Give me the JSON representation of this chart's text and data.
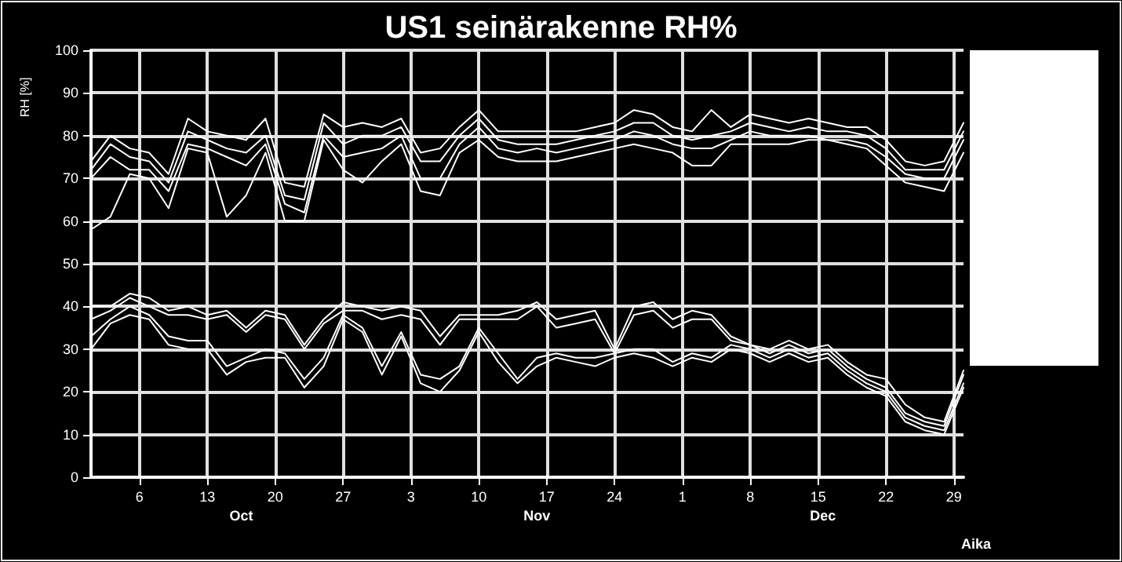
{
  "chart_data": {
    "type": "line",
    "title": "US1 seinärakenne RH%",
    "xlabel": "Aika",
    "ylabel": "RH [%]",
    "x": [
      "--10-01",
      "--10-03",
      "--10-05",
      "--10-07",
      "--10-09",
      "--10-11",
      "--10-13",
      "--10-15",
      "--10-17",
      "--10-19",
      "--10-21",
      "--10-23",
      "--10-25",
      "--10-27",
      "--10-29",
      "--10-31",
      "--11-02",
      "--11-04",
      "--11-06",
      "--11-08",
      "--11-10",
      "--11-12",
      "--11-14",
      "--11-16",
      "--11-18",
      "--11-20",
      "--11-22",
      "--11-24",
      "--11-26",
      "--11-28",
      "--11-30",
      "--12-02",
      "--12-04",
      "--12-06",
      "--12-08",
      "--12-10",
      "--12-12",
      "--12-14",
      "--12-16",
      "--12-18",
      "--12-20",
      "--12-22",
      "--12-24",
      "--12-26",
      "--12-28",
      "--12-30"
    ],
    "series": [
      {
        "color": "#ffffff",
        "values": [
          74,
          80,
          77,
          76,
          71,
          84,
          81,
          80,
          79,
          84,
          69,
          68,
          85,
          82,
          83,
          82,
          84,
          76,
          77,
          82,
          86,
          81,
          81,
          81,
          81,
          81,
          82,
          83,
          86,
          85,
          82,
          81,
          86,
          82,
          85,
          84,
          83,
          84,
          83,
          82,
          82,
          79,
          74,
          73,
          74,
          83
        ]
      },
      {
        "color": "#ffffff",
        "values": [
          72,
          78,
          75,
          74,
          69,
          81,
          79,
          77,
          76,
          80,
          66,
          65,
          83,
          78,
          80,
          80,
          82,
          74,
          74,
          80,
          84,
          79,
          78,
          78,
          78,
          79,
          80,
          81,
          83,
          83,
          80,
          79,
          80,
          81,
          83,
          82,
          81,
          82,
          81,
          81,
          80,
          77,
          72,
          72,
          72,
          81
        ]
      },
      {
        "color": "#ffffff",
        "values": [
          70,
          75,
          72,
          72,
          67,
          78,
          77,
          75,
          73,
          78,
          64,
          62,
          80,
          75,
          76,
          77,
          80,
          70,
          70,
          78,
          82,
          77,
          76,
          77,
          76,
          77,
          78,
          79,
          81,
          80,
          78,
          77,
          77,
          79,
          81,
          80,
          80,
          80,
          79,
          79,
          78,
          75,
          71,
          70,
          70,
          79
        ]
      },
      {
        "color": "#ffffff",
        "values": [
          58,
          61,
          71,
          70,
          63,
          77,
          76,
          61,
          66,
          76,
          60,
          60,
          79,
          72,
          69,
          74,
          78,
          67,
          66,
          76,
          79,
          75,
          74,
          74,
          74,
          75,
          76,
          77,
          78,
          77,
          76,
          73,
          73,
          78,
          78,
          78,
          78,
          79,
          79,
          78,
          77,
          73,
          69,
          68,
          67,
          76
        ]
      },
      {
        "color": "#ffffff",
        "values": [
          40,
          40,
          43,
          42,
          39,
          40,
          38,
          39,
          35,
          39,
          38,
          31,
          37,
          41,
          40,
          39,
          40,
          39,
          33,
          38,
          38,
          38,
          39,
          41,
          37,
          38,
          39,
          30,
          40,
          41,
          37,
          39,
          38,
          33,
          31,
          30,
          32,
          30,
          31,
          27,
          24,
          23,
          17,
          14,
          13,
          25
        ]
      },
      {
        "color": "#ffffff",
        "values": [
          37,
          39,
          42,
          40,
          38,
          38,
          37,
          38,
          34,
          38,
          37,
          30,
          36,
          39,
          39,
          37,
          38,
          37,
          31,
          37,
          37,
          37,
          37,
          40,
          35,
          36,
          37,
          29,
          38,
          39,
          35,
          37,
          37,
          32,
          31,
          29,
          31,
          29,
          30,
          26,
          23,
          21,
          15,
          13,
          12,
          24
        ]
      },
      {
        "color": "#ffffff",
        "values": [
          33,
          37,
          40,
          38,
          33,
          32,
          32,
          26,
          28,
          30,
          29,
          23,
          28,
          38,
          35,
          26,
          34,
          24,
          23,
          26,
          35,
          29,
          23,
          28,
          29,
          28,
          28,
          29,
          30,
          30,
          27,
          29,
          28,
          31,
          30,
          28,
          30,
          28,
          29,
          25,
          22,
          20,
          14,
          12,
          11,
          22
        ]
      },
      {
        "color": "#ffffff",
        "values": [
          30,
          36,
          38,
          37,
          31,
          30,
          30,
          24,
          27,
          28,
          28,
          21,
          26,
          37,
          34,
          24,
          33,
          22,
          20,
          25,
          34,
          27,
          22,
          26,
          28,
          27,
          26,
          28,
          29,
          28,
          26,
          28,
          27,
          30,
          29,
          27,
          29,
          27,
          28,
          24,
          21,
          19,
          13,
          11,
          10,
          21
        ]
      }
    ],
    "xlim": [
      "--10-01",
      "--12-30"
    ],
    "xticks": [
      {
        "value": "--10-06",
        "label": "6"
      },
      {
        "value": "--10-13",
        "label": "13"
      },
      {
        "value": "--10-20",
        "label": "20"
      },
      {
        "value": "--10-27",
        "label": "27"
      },
      {
        "value": "--11-03",
        "label": "3"
      },
      {
        "value": "--11-10",
        "label": "10"
      },
      {
        "value": "--11-17",
        "label": "17"
      },
      {
        "value": "--11-24",
        "label": "24"
      },
      {
        "value": "--12-01",
        "label": "1"
      },
      {
        "value": "--12-08",
        "label": "8"
      },
      {
        "value": "--12-15",
        "label": "15"
      },
      {
        "value": "--12-22",
        "label": "22"
      },
      {
        "value": "--12-29",
        "label": "29"
      }
    ],
    "ylim": [
      0,
      100
    ],
    "yticks": [
      0,
      10,
      20,
      30,
      40,
      50,
      60,
      70,
      80,
      90,
      100
    ],
    "annotations": [
      "Oct",
      "Nov",
      "Dec"
    ],
    "grid": true,
    "marker": "none",
    "line_style": "solid"
  }
}
